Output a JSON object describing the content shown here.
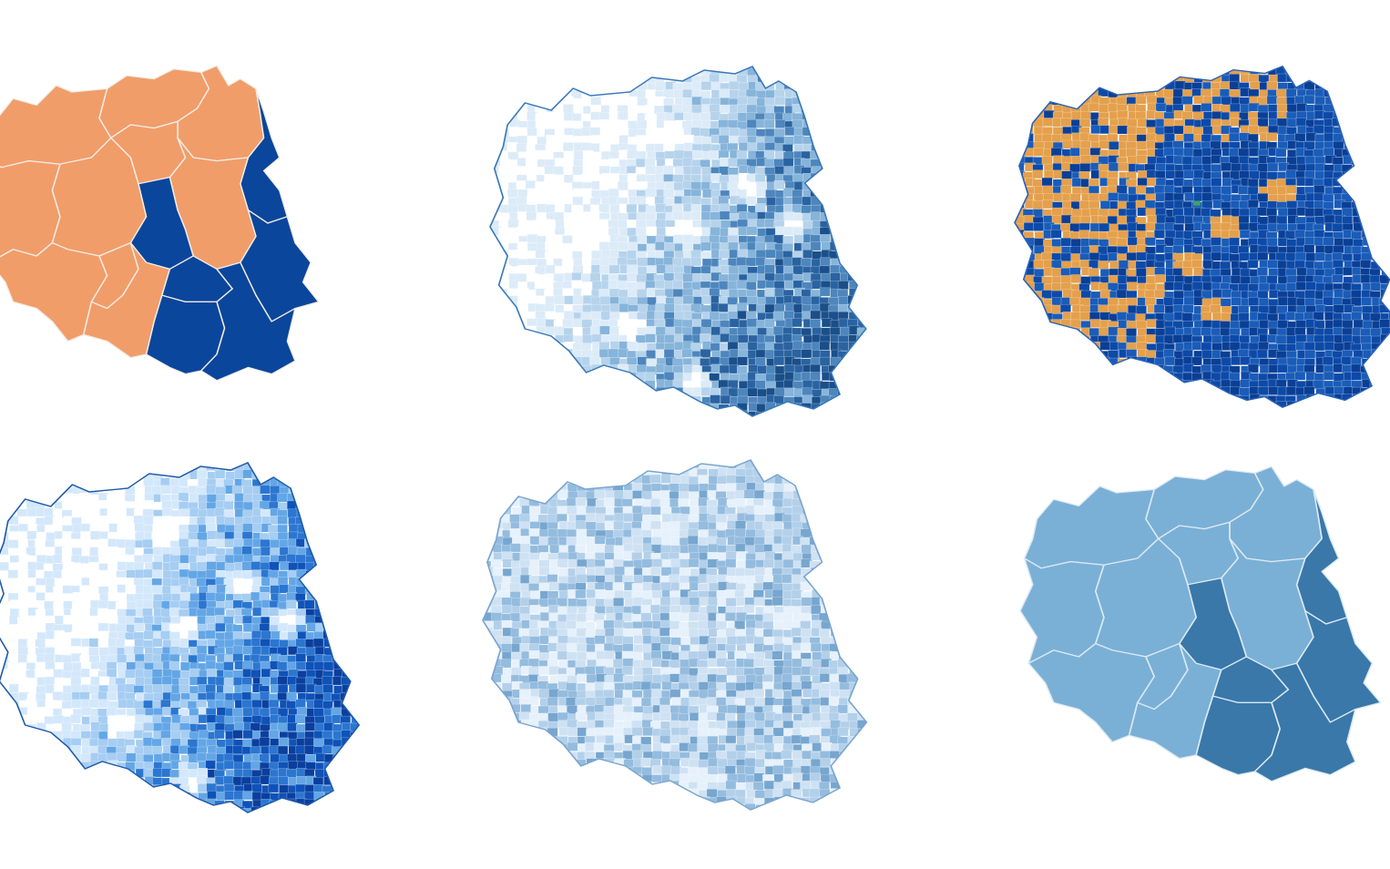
{
  "maps": [
    {
      "id": "voivodeships-orange-blue",
      "style": "regions",
      "colors": {
        "primary": "#f09d6a",
        "secondary": "#0a469c",
        "border": "#f3ece4"
      },
      "regions": [
        {
          "name": "west-pomeranian",
          "fill": "primary"
        },
        {
          "name": "pomeranian",
          "fill": "primary"
        },
        {
          "name": "warmian-masurian",
          "fill": "primary"
        },
        {
          "name": "podlaskie",
          "fill": "secondary"
        },
        {
          "name": "lubusz",
          "fill": "primary"
        },
        {
          "name": "greater-poland",
          "fill": "primary"
        },
        {
          "name": "kuyavian-pomeranian",
          "fill": "primary"
        },
        {
          "name": "masovian",
          "fill": "primary"
        },
        {
          "name": "lodz",
          "fill": "secondary"
        },
        {
          "name": "lublin",
          "fill": "secondary"
        },
        {
          "name": "lower-silesian",
          "fill": "primary"
        },
        {
          "name": "opole",
          "fill": "primary"
        },
        {
          "name": "silesian",
          "fill": "primary"
        },
        {
          "name": "swietokrzyskie",
          "fill": "secondary"
        },
        {
          "name": "lesser-poland",
          "fill": "secondary"
        },
        {
          "name": "subcarpathian",
          "fill": "secondary"
        }
      ]
    },
    {
      "id": "municipalities-blue-gradient-a",
      "style": "mosaic",
      "palette": [
        "#ffffff",
        "#dcebf8",
        "#b6d3ec",
        "#86b4da",
        "#4d86bd",
        "#2a63a1",
        "#1a4f8a"
      ],
      "east_bias": 0.75,
      "outline": "#3a78b8"
    },
    {
      "id": "municipalities-orange-blue",
      "style": "mosaic",
      "palette": [
        "#e4a04c",
        "#0d4aa8",
        "#1a5cb8",
        "#0a3f96"
      ],
      "east_bias": 1.0,
      "outline": "#2b62b6",
      "accent": "#3aa65a"
    },
    {
      "id": "municipalities-blue-gradient-b",
      "style": "mosaic",
      "palette": [
        "#ffffff",
        "#d4e8fb",
        "#a6cdf2",
        "#63a6e6",
        "#2b76d0",
        "#0f52b8",
        "#0a3f9e"
      ],
      "east_bias": 0.75,
      "outline": "#1f5aa8"
    },
    {
      "id": "municipalities-light-blue",
      "style": "mosaic",
      "palette": [
        "#e6f1fb",
        "#cfe2f3",
        "#b3d0ea",
        "#94bcde",
        "#77a6cf"
      ],
      "east_bias": 0.15,
      "outline": "#7aa5cf"
    },
    {
      "id": "voivodeships-steel-blue",
      "style": "regions",
      "colors": {
        "primary": "#7ab0d6",
        "secondary": "#3978a9",
        "border": "#dde9f3"
      },
      "regions": [
        {
          "name": "west-pomeranian",
          "fill": "primary"
        },
        {
          "name": "pomeranian",
          "fill": "primary"
        },
        {
          "name": "warmian-masurian",
          "fill": "primary"
        },
        {
          "name": "podlaskie",
          "fill": "secondary"
        },
        {
          "name": "lubusz",
          "fill": "primary"
        },
        {
          "name": "greater-poland",
          "fill": "primary"
        },
        {
          "name": "kuyavian-pomeranian",
          "fill": "primary"
        },
        {
          "name": "masovian",
          "fill": "primary"
        },
        {
          "name": "lodz",
          "fill": "secondary"
        },
        {
          "name": "lublin",
          "fill": "secondary"
        },
        {
          "name": "lower-silesian",
          "fill": "primary"
        },
        {
          "name": "opole",
          "fill": "primary"
        },
        {
          "name": "silesian",
          "fill": "primary"
        },
        {
          "name": "swietokrzyskie",
          "fill": "secondary"
        },
        {
          "name": "lesser-poland",
          "fill": "secondary"
        },
        {
          "name": "subcarpathian",
          "fill": "secondary"
        }
      ]
    }
  ]
}
